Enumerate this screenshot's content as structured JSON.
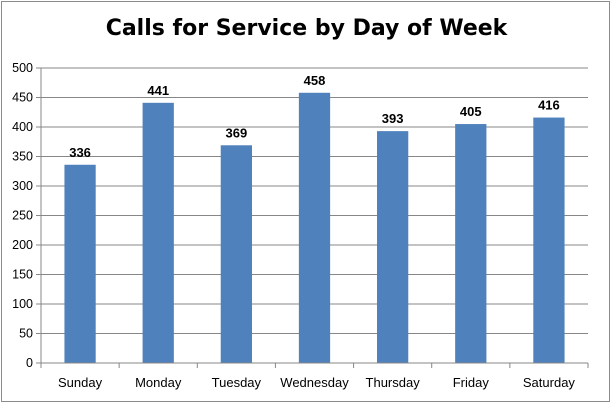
{
  "chart_data": {
    "type": "bar",
    "title": "Calls for Service by Day of Week",
    "categories": [
      "Sunday",
      "Monday",
      "Tuesday",
      "Wednesday",
      "Thursday",
      "Friday",
      "Saturday"
    ],
    "values": [
      336,
      441,
      369,
      458,
      393,
      405,
      416
    ],
    "data_labels": [
      "336",
      "441",
      "369",
      "458",
      "393",
      "405",
      "416"
    ],
    "xlabel": "",
    "ylabel": "",
    "ylim": [
      0,
      500
    ],
    "yticks": [
      "0",
      "50",
      "100",
      "150",
      "200",
      "250",
      "300",
      "350",
      "400",
      "450",
      "500"
    ],
    "grid": true,
    "legend": "none",
    "bar_color": "#4f81bd",
    "grid_color": "#878787"
  }
}
